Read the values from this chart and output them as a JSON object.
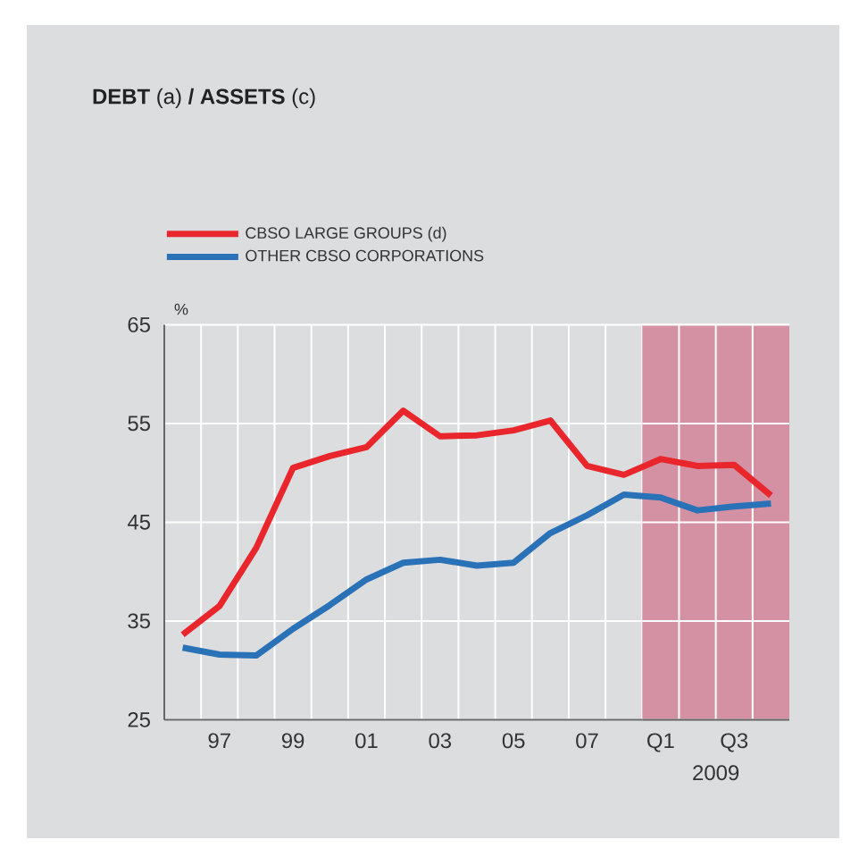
{
  "chart_data": {
    "type": "line",
    "title": "**DEBT** (a) **/ ASSETS** (c)",
    "ylabel": "%",
    "categories": [
      null,
      "97",
      null,
      "99",
      null,
      "01",
      null,
      "03",
      null,
      "05",
      null,
      "07",
      null,
      "Q1",
      null,
      "Q3",
      null
    ],
    "series": [
      {
        "name": "CBSO LARGE GROUPS (d)",
        "color": "#e8262b",
        "values": [
          33.6,
          36.5,
          42.4,
          50.5,
          51.7,
          52.6,
          56.3,
          53.7,
          53.8,
          54.3,
          55.3,
          50.7,
          49.8,
          51.4,
          50.7,
          50.8,
          47.7
        ]
      },
      {
        "name": "OTHER CBSO CORPORATIONS",
        "color": "#2a72b8",
        "values": [
          32.3,
          31.6,
          31.5,
          34.2,
          36.6,
          39.2,
          40.9,
          41.2,
          40.6,
          40.9,
          43.9,
          45.7,
          47.8,
          47.5,
          46.2,
          46.6,
          46.9
        ]
      }
    ],
    "ylim": [
      25,
      65
    ],
    "yticks": [
      25,
      35,
      45,
      55,
      65
    ],
    "grid": true,
    "legend": "top left",
    "marker": "none",
    "line_style": "solid",
    "annotations": [
      "2009"
    ]
  }
}
